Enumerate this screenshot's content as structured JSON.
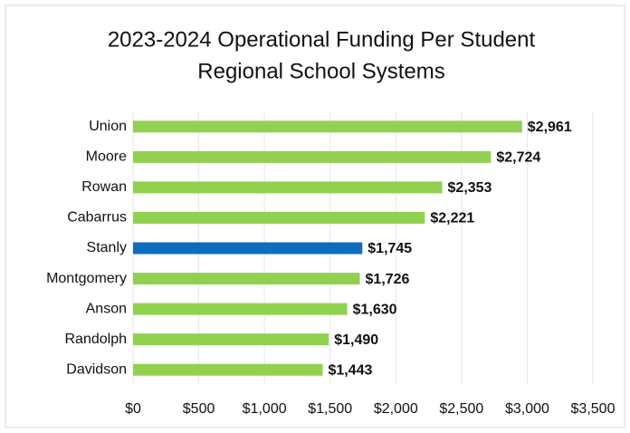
{
  "chart_data": {
    "type": "bar",
    "orientation": "horizontal",
    "title": "2023-2024 Operational Funding Per Student",
    "subtitle": "Regional School Systems",
    "categories": [
      "Union",
      "Moore",
      "Rowan",
      "Cabarrus",
      "Stanly",
      "Montgomery",
      "Anson",
      "Randolph",
      "Davidson"
    ],
    "values": [
      2961,
      2724,
      2353,
      2221,
      1745,
      1726,
      1630,
      1490,
      1443
    ],
    "value_labels": [
      "$2,961",
      "$2,724",
      "$2,353",
      "$2,221",
      "$1,745",
      "$1,726",
      "$1,630",
      "$1,490",
      "$1,443"
    ],
    "colors": [
      "#92d050",
      "#92d050",
      "#92d050",
      "#92d050",
      "#0f6cbd",
      "#92d050",
      "#92d050",
      "#92d050",
      "#92d050"
    ],
    "xlim": [
      0,
      3500
    ],
    "xticks": [
      {
        "value": 0,
        "label": "$0"
      },
      {
        "value": 500,
        "label": "$500"
      },
      {
        "value": 1000,
        "label": "$1,000"
      },
      {
        "value": 1500,
        "label": "$1,500"
      },
      {
        "value": 2000,
        "label": "$2,000"
      },
      {
        "value": 2500,
        "label": "$2,500"
      },
      {
        "value": 3000,
        "label": "$3,000"
      },
      {
        "value": 3500,
        "label": "$3,500"
      }
    ],
    "grid": true
  }
}
